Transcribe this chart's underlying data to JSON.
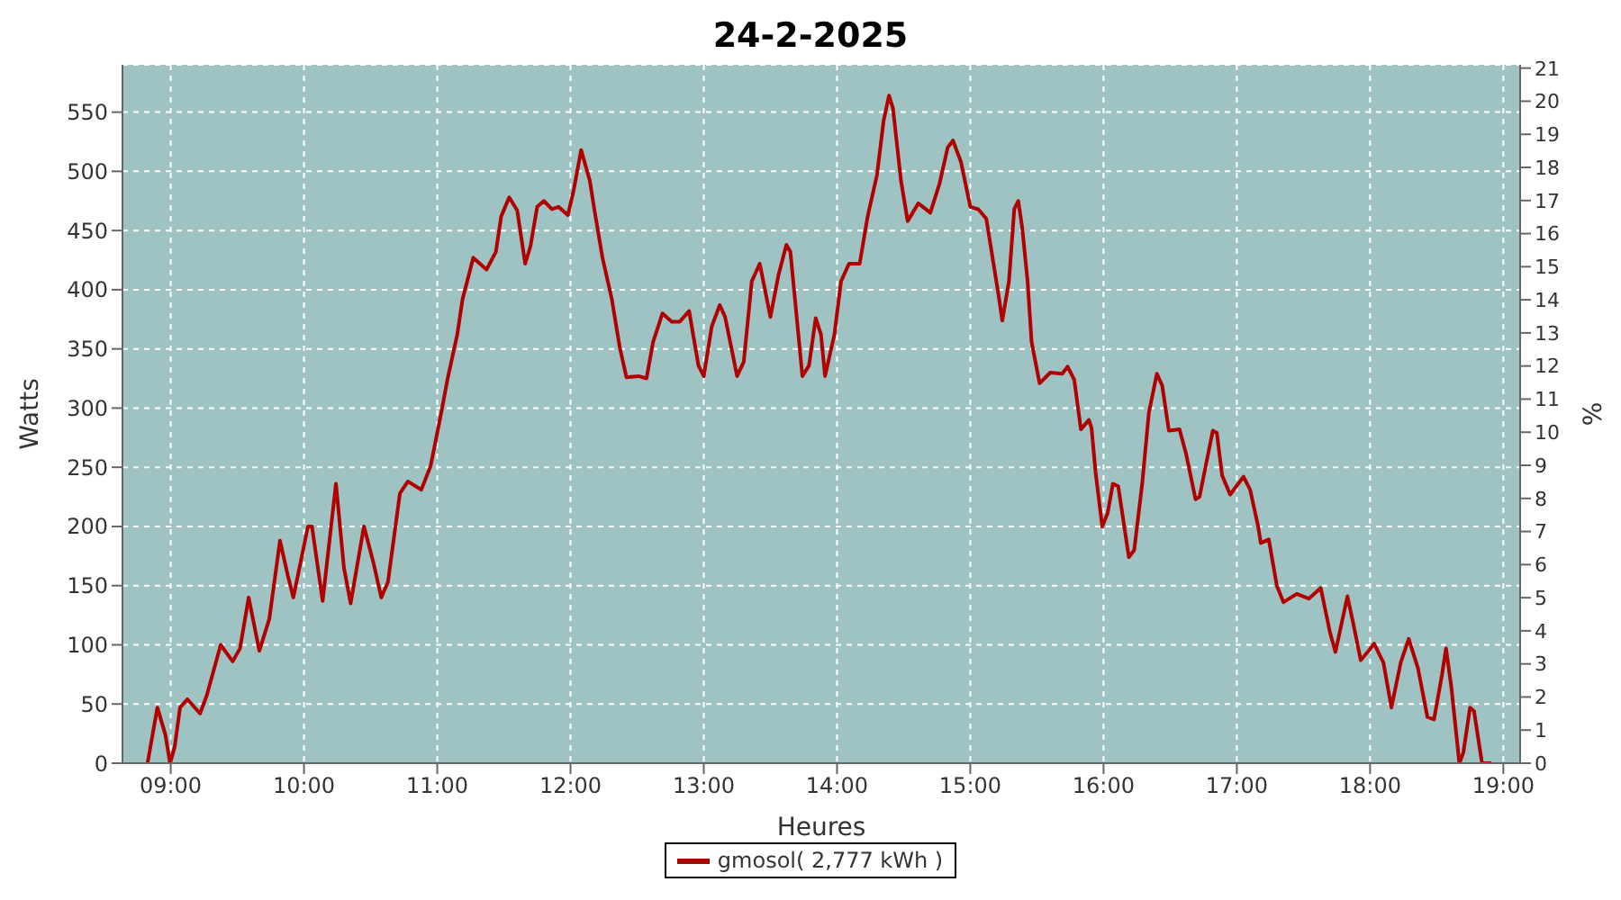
{
  "chart_data": {
    "type": "line",
    "title": "24-2-2025",
    "xlabel": "Heures",
    "ylabel": "Watts",
    "y2label": "%",
    "xlim": [
      8.638,
      19.126
    ],
    "xticks": [
      {
        "value": 9,
        "label": "09:00"
      },
      {
        "value": 10,
        "label": "10:00"
      },
      {
        "value": 11,
        "label": "11:00"
      },
      {
        "value": 12,
        "label": "12:00"
      },
      {
        "value": 13,
        "label": "13:00"
      },
      {
        "value": 14,
        "label": "14:00"
      },
      {
        "value": 15,
        "label": "15:00"
      },
      {
        "value": 16,
        "label": "16:00"
      },
      {
        "value": 17,
        "label": "17:00"
      },
      {
        "value": 18,
        "label": "18:00"
      },
      {
        "value": 19,
        "label": "19:00"
      }
    ],
    "ylim": [
      0,
      590
    ],
    "yticks": [
      0,
      50,
      100,
      150,
      200,
      250,
      300,
      350,
      400,
      450,
      500,
      550
    ],
    "y2lim": [
      0,
      21.1
    ],
    "y2ticks": [
      0,
      1,
      2,
      3,
      4,
      5,
      6,
      7,
      8,
      9,
      10,
      11,
      12,
      13,
      14,
      15,
      16,
      17,
      18,
      19,
      20,
      21
    ],
    "grid": true,
    "legend": "bottom",
    "marker": "none",
    "line_style": "solid",
    "series": [
      {
        "name": "gmosol( 2,777 kWh )",
        "color": "#b00000",
        "x": [
          8.826,
          8.9,
          8.96,
          8.995,
          9.03,
          9.07,
          9.125,
          9.22,
          9.27,
          9.375,
          9.465,
          9.52,
          9.585,
          9.665,
          9.74,
          9.82,
          9.88,
          9.92,
          10.03,
          10.06,
          10.14,
          10.24,
          10.3,
          10.35,
          10.45,
          10.52,
          10.58,
          10.63,
          10.72,
          10.78,
          10.88,
          10.95,
          11.03,
          11.08,
          11.15,
          11.19,
          11.27,
          11.37,
          11.44,
          11.48,
          11.54,
          11.6,
          11.66,
          11.7,
          11.75,
          11.8,
          11.86,
          11.91,
          11.98,
          12.02,
          12.08,
          12.145,
          12.18,
          12.24,
          12.31,
          12.37,
          12.42,
          12.51,
          12.57,
          12.62,
          12.69,
          12.76,
          12.82,
          12.89,
          12.96,
          13.0,
          13.06,
          13.12,
          13.16,
          13.25,
          13.3,
          13.36,
          13.42,
          13.5,
          13.56,
          13.62,
          13.65,
          13.74,
          13.79,
          13.84,
          13.88,
          13.91,
          13.98,
          14.03,
          14.09,
          14.17,
          14.23,
          14.3,
          14.35,
          14.39,
          14.42,
          14.48,
          14.53,
          14.61,
          14.7,
          14.77,
          14.83,
          14.87,
          14.93,
          15.0,
          15.06,
          15.12,
          15.16,
          15.21,
          15.24,
          15.29,
          15.33,
          15.36,
          15.39,
          15.43,
          15.46,
          15.52,
          15.6,
          15.69,
          15.73,
          15.78,
          15.83,
          15.89,
          15.91,
          15.94,
          15.99,
          16.03,
          16.07,
          16.11,
          16.19,
          16.23,
          16.29,
          16.34,
          16.4,
          16.44,
          16.49,
          16.57,
          16.62,
          16.69,
          16.72,
          16.82,
          16.85,
          16.89,
          16.95,
          17.05,
          17.1,
          17.16,
          17.18,
          17.24,
          17.3,
          17.35,
          17.45,
          17.54,
          17.63,
          17.7,
          17.74,
          17.79,
          17.83,
          17.87,
          17.93,
          17.99,
          18.03,
          18.1,
          18.16,
          18.23,
          18.29,
          18.36,
          18.43,
          18.48,
          18.54,
          18.57,
          18.61,
          18.67,
          18.7,
          18.75,
          18.78,
          18.84,
          18.91
        ],
        "values": [
          0,
          47,
          24,
          0,
          14,
          47,
          54,
          42,
          57,
          100,
          86,
          97,
          140,
          95,
          122,
          188,
          158,
          140,
          200,
          200,
          137,
          236,
          165,
          135,
          200,
          170,
          140,
          153,
          228,
          238,
          231,
          251,
          296,
          326,
          362,
          392,
          427,
          417,
          432,
          462,
          478,
          467,
          422,
          437,
          470,
          475,
          468,
          470,
          463,
          482,
          518,
          492,
          467,
          427,
          392,
          351,
          326,
          327,
          325,
          356,
          380,
          373,
          373,
          382,
          336,
          327,
          369,
          387,
          377,
          327,
          339,
          407,
          422,
          377,
          412,
          438,
          432,
          327,
          336,
          376,
          362,
          327,
          362,
          407,
          422,
          422,
          462,
          497,
          543,
          564,
          553,
          492,
          458,
          473,
          465,
          490,
          520,
          526,
          508,
          470,
          468,
          460,
          432,
          397,
          374,
          407,
          468,
          475,
          452,
          407,
          356,
          321,
          330,
          329,
          335,
          324,
          282,
          290,
          283,
          246,
          200,
          211,
          236,
          234,
          174,
          180,
          236,
          296,
          329,
          319,
          281,
          282,
          261,
          223,
          225,
          281,
          279,
          243,
          227,
          242,
          231,
          200,
          186,
          189,
          150,
          136,
          143,
          139,
          148,
          110,
          94,
          120,
          141,
          120,
          87,
          95,
          101,
          85,
          47,
          85,
          105,
          80,
          39,
          37,
          75,
          97,
          64,
          0,
          9,
          47,
          44,
          0,
          0
        ]
      }
    ]
  }
}
